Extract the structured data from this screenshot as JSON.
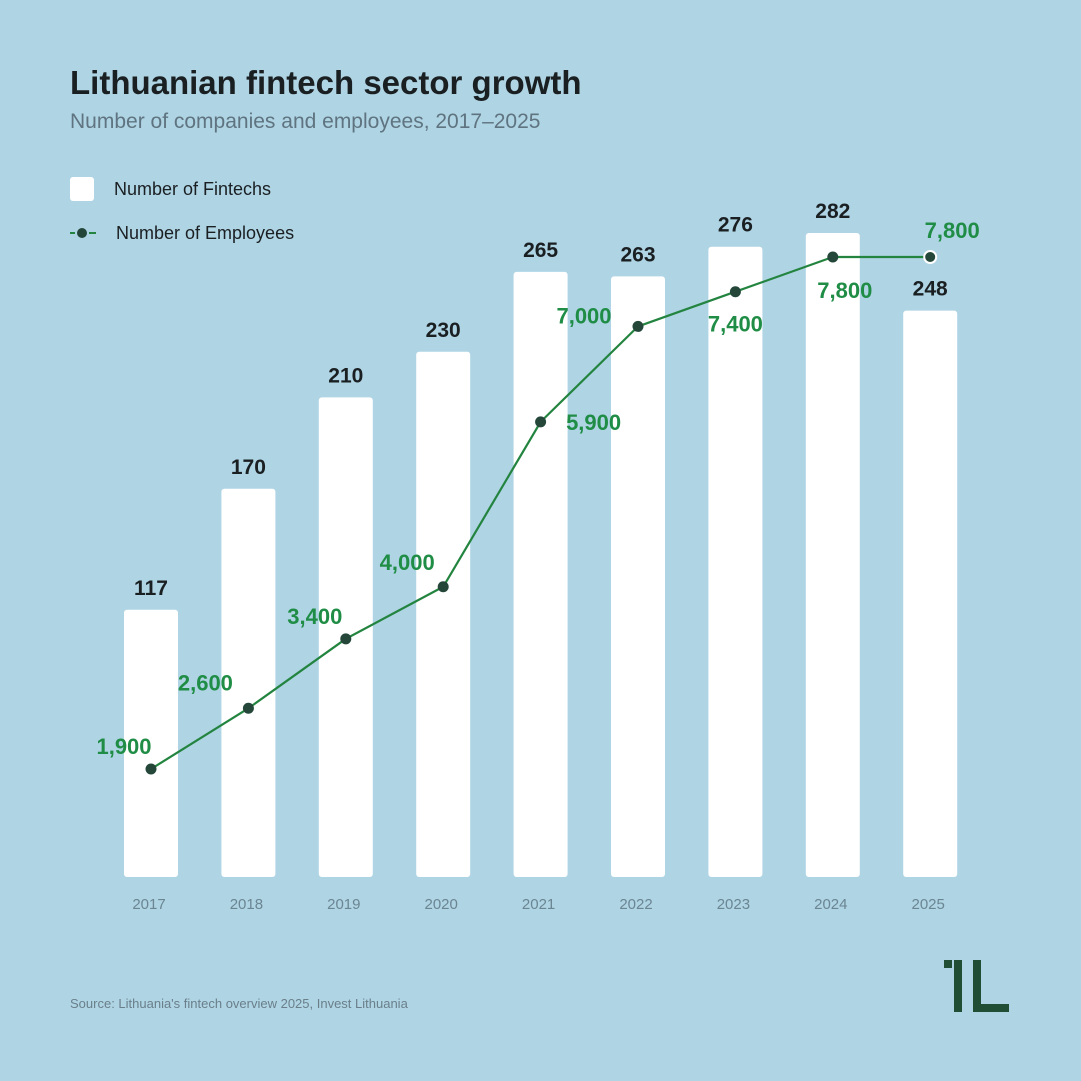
{
  "header": {
    "title": "Lithuanian fintech sector growth",
    "subtitle": "Number of companies and employees, 2017–2025"
  },
  "legend": {
    "fintechs_label": "Number of Fintechs",
    "employees_label": "Number of Employees"
  },
  "source": "Source: Lithuania's fintech overview 2025, Invest Lithuania",
  "logo": {
    "icon": "invest-lithuania-logo-icon",
    "color": "#1f4e35"
  },
  "colors": {
    "background": "#afd4e4",
    "bars": "#ffffff",
    "line": "#23843f",
    "marker": "#24473a",
    "employee_labels": "#1f8d45",
    "fintech_labels": "#1a1f22",
    "year_labels": "#6b8592"
  },
  "chart_data": {
    "type": "bar",
    "title": "Lithuanian fintech sector growth",
    "subtitle": "Number of companies and employees, 2017–2025",
    "categories": [
      "2017",
      "2018",
      "2019",
      "2020",
      "2021",
      "2022",
      "2023",
      "2024",
      "2025"
    ],
    "series": [
      {
        "name": "Number of Fintechs",
        "type": "bar",
        "values": [
          117,
          170,
          210,
          230,
          265,
          263,
          276,
          282,
          248
        ],
        "labels": [
          "117",
          "170",
          "210",
          "230",
          "265",
          "263",
          "276",
          "282",
          "248"
        ]
      },
      {
        "name": "Number of Employees",
        "type": "line",
        "values": [
          1900,
          2600,
          3400,
          4000,
          5900,
          7000,
          7400,
          7800,
          7800
        ],
        "labels": [
          "1,900",
          "2,600",
          "3,400",
          "4,000",
          "5,900",
          "7,000",
          "7,400",
          "7,800",
          "7,800"
        ]
      }
    ],
    "xlabel": "",
    "ylabel": "",
    "grid": false,
    "legend_position": "top-left"
  }
}
